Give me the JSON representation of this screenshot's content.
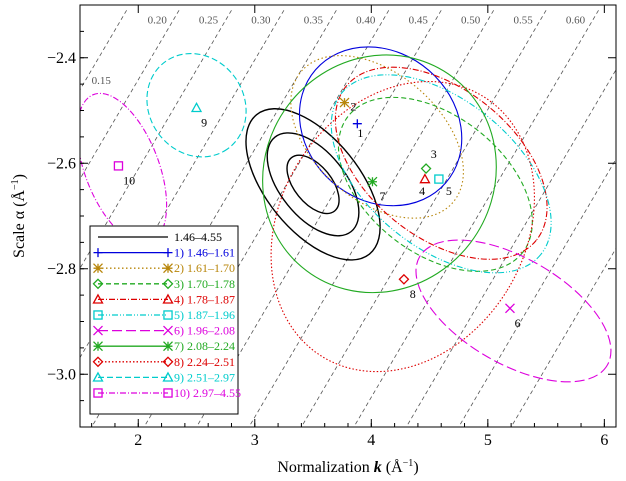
{
  "chart_data": {
    "type": "scatter",
    "xlabel_text": "Normalization ",
    "xlabel_var": "k",
    "xlabel_unit": " (Å",
    "xlabel_unit_exp": "−1",
    "xlabel_unit_close": ")",
    "ylabel_text": "Scale α (Å",
    "ylabel_unit_exp": "−1",
    "ylabel_close": ")",
    "xlim": [
      1.5,
      6.1
    ],
    "ylim": [
      -3.1,
      -2.3
    ],
    "xticks": [
      2,
      3,
      4,
      5,
      6
    ],
    "yticks": [
      -2.4,
      -2.6,
      -2.8,
      -3.0
    ],
    "ytick_labels": [
      "−2.4",
      "−2.6",
      "−2.8",
      "−3.0"
    ],
    "contour_labels": [
      {
        "text": "0.15",
        "x": 1.6,
        "y": -2.45
      },
      {
        "text": "0.20",
        "x": 2.08,
        "y": -2.335
      },
      {
        "text": "0.25",
        "x": 2.52,
        "y": -2.335
      },
      {
        "text": "0.30",
        "x": 2.97,
        "y": -2.335
      },
      {
        "text": "0.35",
        "x": 3.42,
        "y": -2.335
      },
      {
        "text": "0.40",
        "x": 3.87,
        "y": -2.335
      },
      {
        "text": "0.45",
        "x": 4.32,
        "y": -2.335
      },
      {
        "text": "0.50",
        "x": 4.77,
        "y": -2.335
      },
      {
        "text": "0.55",
        "x": 5.22,
        "y": -2.335
      },
      {
        "text": "0.60",
        "x": 5.67,
        "y": -2.335
      }
    ],
    "overall": {
      "name": "1.46–4.55",
      "color": "#000000",
      "cx": 3.5,
      "cy": -2.64,
      "scales": [
        [
          0.4,
          0.17
        ],
        [
          0.28,
          0.115
        ],
        [
          0.16,
          0.065
        ]
      ],
      "rot": -39
    },
    "series": [
      {
        "id": 1,
        "name": "1.46–1.61",
        "color": "#0000dd",
        "marker": "plus",
        "dash": "",
        "x": 3.88,
        "y": -2.525,
        "ellipse": {
          "cx": 4.08,
          "cy": -2.53,
          "rx": 0.74,
          "ry": 0.14,
          "rot": 41
        },
        "label_offset": [
          0.0,
          -0.025
        ]
      },
      {
        "id": 2,
        "name": "1.61–1.70",
        "color": "#b8860b",
        "marker": "asterisk",
        "dash": "1.5,2.5",
        "x": 3.77,
        "y": -2.485,
        "ellipse": {
          "cx": 4.05,
          "cy": -2.55,
          "rx": 0.86,
          "ry": 0.12,
          "rot": 41
        },
        "label_offset": [
          0.05,
          -0.015
        ]
      },
      {
        "id": 3,
        "name": "1.70–1.78",
        "color": "#22aa22",
        "marker": "diamond",
        "dash": "5,3",
        "x": 4.47,
        "y": -2.61,
        "ellipse": {
          "cx": 4.55,
          "cy": -2.64,
          "rx": 0.95,
          "ry": 0.13,
          "rot": 38
        },
        "label_offset": [
          0.04,
          0.02
        ]
      },
      {
        "id": 4,
        "name": "1.78–1.87",
        "color": "#dd0000",
        "marker": "triangle",
        "dash": "6,2,1,2",
        "x": 4.46,
        "y": -2.63,
        "ellipse": {
          "cx": 4.6,
          "cy": -2.6,
          "rx": 1.05,
          "ry": 0.14,
          "rot": 39
        },
        "label_offset": [
          -0.05,
          -0.03
        ]
      },
      {
        "id": 5,
        "name": "1.87–1.96",
        "color": "#00cccc",
        "marker": "square",
        "dash": "6,2,1,2,1,2",
        "x": 4.58,
        "y": -2.63,
        "ellipse": {
          "cx": 4.6,
          "cy": -2.62,
          "rx": 1.1,
          "ry": 0.14,
          "rot": 39
        },
        "label_offset": [
          0.06,
          -0.03
        ]
      },
      {
        "id": 6,
        "name": "1.96–2.08",
        "color": "#dd00dd",
        "marker": "cross",
        "dash": "10,4",
        "x": 5.19,
        "y": -2.875,
        "ellipse": {
          "cx": 5.22,
          "cy": -2.88,
          "rx": 0.93,
          "ry": 0.1,
          "rot": 30
        },
        "label_offset": [
          0.04,
          -0.035
        ]
      },
      {
        "id": 7,
        "name": "2.08–2.24",
        "color": "#22aa22",
        "marker": "asterisk",
        "dash": "",
        "x": 4.01,
        "y": -2.635,
        "ellipse": {
          "cx": 4.07,
          "cy": -2.62,
          "rx": 0.98,
          "ry": 0.23,
          "rot": 37
        },
        "label_offset": [
          0.06,
          -0.035
        ]
      },
      {
        "id": 8,
        "name": "2.24–2.51",
        "color": "#dd0000",
        "marker": "diamond",
        "dash": "1.5,2",
        "x": 4.28,
        "y": -2.82,
        "ellipse": {
          "cx": 4.27,
          "cy": -2.72,
          "rx": 1.05,
          "ry": 0.29,
          "rot": 32
        },
        "label_offset": [
          0.05,
          -0.035
        ]
      },
      {
        "id": 9,
        "name": "2.51–2.97",
        "color": "#00cccc",
        "marker": "triangle",
        "dash": "6,3",
        "x": 2.5,
        "y": -2.495,
        "ellipse": {
          "cx": 2.5,
          "cy": -2.49,
          "rx": 0.46,
          "ry": 0.09,
          "rot": 55
        },
        "label_offset": [
          0.04,
          -0.035
        ]
      },
      {
        "id": 10,
        "name": "2.97–4.55",
        "color": "#dd00dd",
        "marker": "square",
        "dash": "6,2,1,2",
        "x": 1.83,
        "y": -2.605,
        "ellipse": {
          "cx": 1.86,
          "cy": -2.61,
          "rx": 0.68,
          "ry": 0.07,
          "rot": 69
        },
        "label_offset": [
          0.04,
          -0.035
        ]
      }
    ],
    "legend_position": "bottom-left",
    "grid": false
  }
}
